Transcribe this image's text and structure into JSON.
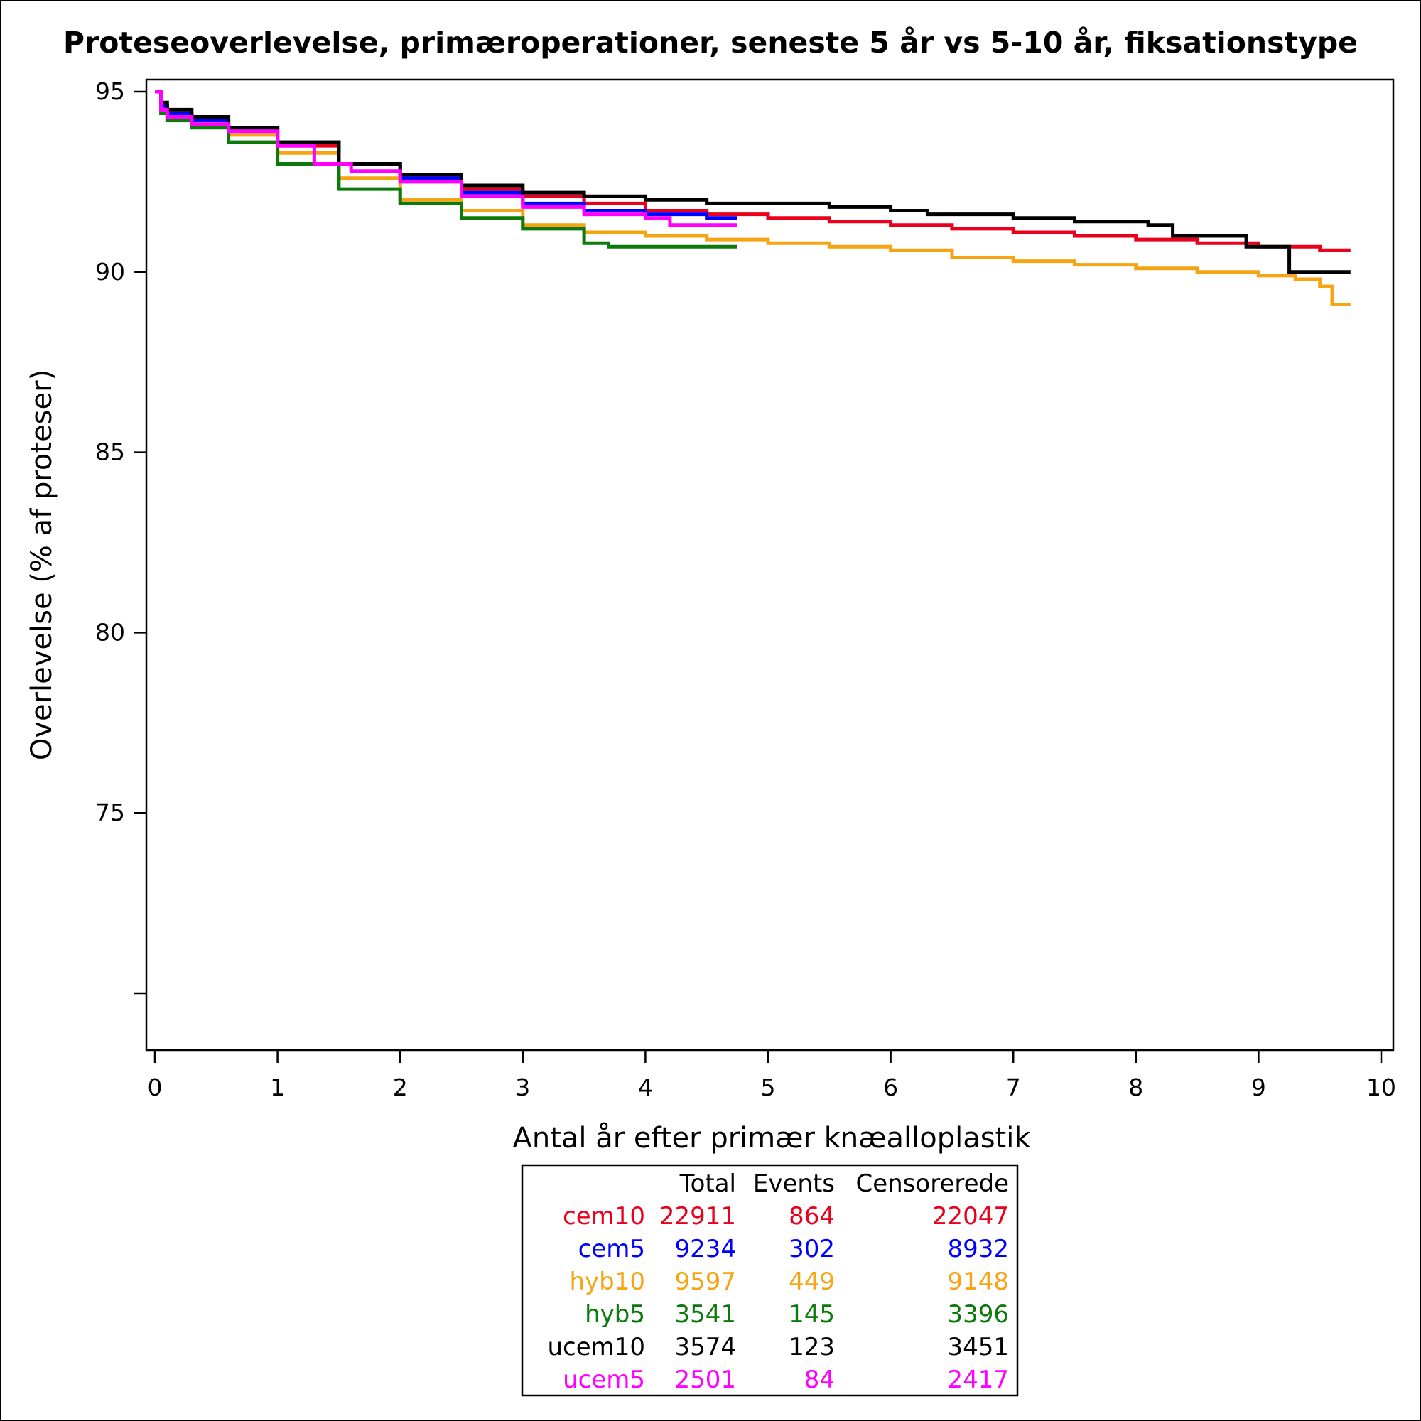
{
  "chart_data": {
    "type": "line",
    "title": "Proteseoverlevelse, primæroperationer, seneste 5 år vs 5-10 år, fiksationstype",
    "xlabel": "Antal år efter primær knæalloplastik",
    "ylabel": "Overlevelse (% af proteser)",
    "xlim": [
      0,
      10
    ],
    "ylim": [
      70,
      95
    ],
    "x_ticks": [
      "0",
      "1",
      "2",
      "3",
      "4",
      "5",
      "6",
      "7",
      "8",
      "9",
      "10"
    ],
    "y_ticks": [
      "95",
      "90",
      "85",
      "80",
      "75",
      ""
    ],
    "grid": false,
    "series": [
      {
        "name": "cem10",
        "color": "#e8001c",
        "x": [
          0,
          0.05,
          0.1,
          0.3,
          0.6,
          1.0,
          1.5,
          2.0,
          2.5,
          3.0,
          3.5,
          4.0,
          4.5,
          5.0,
          5.5,
          6.0,
          6.5,
          7.0,
          7.5,
          8.0,
          8.5,
          9.0,
          9.5,
          9.75
        ],
        "y": [
          95,
          94.6,
          94.4,
          94.2,
          94.0,
          93.5,
          93.0,
          92.7,
          92.3,
          92.1,
          91.9,
          91.7,
          91.6,
          91.5,
          91.4,
          91.3,
          91.2,
          91.1,
          91.0,
          90.9,
          90.8,
          90.7,
          90.6,
          90.6
        ]
      },
      {
        "name": "cem5",
        "color": "#0000ff",
        "x": [
          0,
          0.05,
          0.1,
          0.3,
          0.6,
          1.0,
          1.5,
          2.0,
          2.5,
          3.0,
          3.5,
          4.0,
          4.5,
          4.75
        ],
        "y": [
          95,
          94.6,
          94.4,
          94.2,
          94.0,
          93.6,
          93.0,
          92.6,
          92.2,
          91.9,
          91.7,
          91.6,
          91.5,
          91.5
        ]
      },
      {
        "name": "hyb10",
        "color": "#f5a414",
        "x": [
          0,
          0.05,
          0.1,
          0.3,
          0.6,
          1.0,
          1.5,
          2.0,
          2.5,
          3.0,
          3.5,
          4.0,
          4.5,
          5.0,
          5.5,
          6.0,
          6.5,
          7.0,
          7.5,
          8.0,
          8.5,
          9.0,
          9.3,
          9.5,
          9.6,
          9.75
        ],
        "y": [
          95,
          94.5,
          94.3,
          94.1,
          93.8,
          93.3,
          92.6,
          92.0,
          91.7,
          91.3,
          91.1,
          91.0,
          90.9,
          90.8,
          90.7,
          90.6,
          90.4,
          90.3,
          90.2,
          90.1,
          90.0,
          89.9,
          89.8,
          89.6,
          89.1,
          89.1
        ]
      },
      {
        "name": "hyb5",
        "color": "#0b7a0b",
        "x": [
          0,
          0.05,
          0.1,
          0.3,
          0.6,
          1.0,
          1.5,
          2.0,
          2.5,
          3.0,
          3.5,
          3.7,
          4.0,
          4.5,
          4.75
        ],
        "y": [
          95,
          94.4,
          94.2,
          94.0,
          93.6,
          93.0,
          92.3,
          91.9,
          91.5,
          91.2,
          90.8,
          90.7,
          90.7,
          90.7,
          90.7
        ]
      },
      {
        "name": "ucem10",
        "color": "#000000",
        "x": [
          0,
          0.05,
          0.1,
          0.3,
          0.6,
          1.0,
          1.5,
          2.0,
          2.5,
          3.0,
          3.5,
          4.0,
          4.5,
          5.0,
          5.5,
          6.0,
          6.3,
          7.0,
          7.5,
          8.0,
          8.1,
          8.3,
          8.9,
          9.2,
          9.25,
          9.75
        ],
        "y": [
          95,
          94.7,
          94.5,
          94.3,
          94.0,
          93.6,
          93.0,
          92.7,
          92.4,
          92.2,
          92.1,
          92.0,
          91.9,
          91.9,
          91.8,
          91.7,
          91.6,
          91.5,
          91.4,
          91.4,
          91.3,
          91.0,
          90.7,
          90.7,
          90.0,
          90.0
        ]
      },
      {
        "name": "ucem5",
        "color": "#ff00ff",
        "x": [
          0,
          0.05,
          0.1,
          0.3,
          0.6,
          1.0,
          1.3,
          1.6,
          2.0,
          2.5,
          3.0,
          3.5,
          4.0,
          4.2,
          4.75
        ],
        "y": [
          95,
          94.5,
          94.3,
          94.1,
          93.9,
          93.5,
          93.0,
          92.8,
          92.5,
          92.1,
          91.8,
          91.6,
          91.5,
          91.3,
          91.3
        ]
      }
    ],
    "legend": {
      "placement": "bottom",
      "headers": [
        "",
        "Total",
        "Events",
        "Censorerede"
      ],
      "rows": [
        {
          "name": "cem10",
          "total": "22911",
          "events": "864",
          "censored": "22047",
          "color": "#e8001c"
        },
        {
          "name": "cem5",
          "total": "9234",
          "events": "302",
          "censored": "8932",
          "color": "#0000ff"
        },
        {
          "name": "hyb10",
          "total": "9597",
          "events": "449",
          "censored": "9148",
          "color": "#f5a414"
        },
        {
          "name": "hyb5",
          "total": "3541",
          "events": "145",
          "censored": "3396",
          "color": "#0b7a0b"
        },
        {
          "name": "ucem10",
          "total": "3574",
          "events": "123",
          "censored": "3451",
          "color": "#000000"
        },
        {
          "name": "ucem5",
          "total": "2501",
          "events": "84",
          "censored": "2417",
          "color": "#ff00ff"
        }
      ]
    }
  }
}
